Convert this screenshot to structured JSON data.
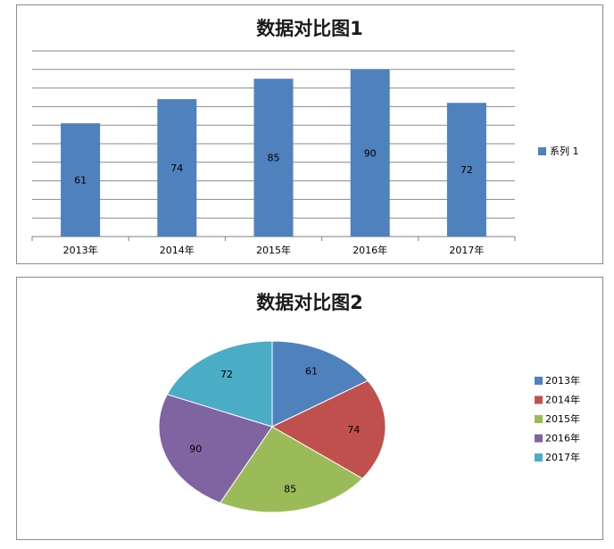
{
  "chart_data": [
    {
      "type": "bar",
      "title": "数据对比图1",
      "categories": [
        "2013年",
        "2014年",
        "2015年",
        "2016年",
        "2017年"
      ],
      "series": [
        {
          "name": "系列 1",
          "values": [
            61,
            74,
            85,
            90,
            72
          ],
          "color": "#4F81BD"
        }
      ],
      "ylim": [
        0,
        100
      ],
      "grid": true,
      "data_labels": true,
      "legend_position": "right"
    },
    {
      "type": "pie",
      "title": "数据对比图2",
      "labels": [
        "2013年",
        "2014年",
        "2015年",
        "2016年",
        "2017年"
      ],
      "values": [
        61,
        74,
        85,
        90,
        72
      ],
      "colors": [
        "#4F81BD",
        "#C0504D",
        "#9BBB59",
        "#8064A2",
        "#4BACC6"
      ],
      "data_labels": true,
      "legend_position": "right"
    }
  ]
}
